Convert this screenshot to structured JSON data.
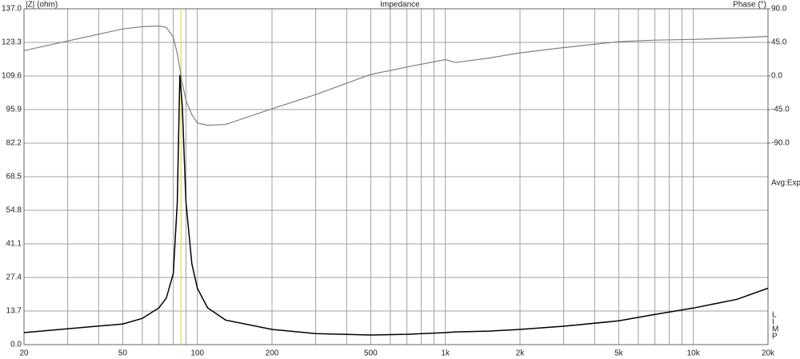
{
  "chart_data": {
    "type": "line",
    "title": "Impedance",
    "ylabel": "|Z| (ohm)",
    "y2label": "Phase (°)",
    "side_label": "Avg:Exp",
    "mode_letters": [
      "L",
      "I",
      "M",
      "P"
    ],
    "xscale": "log",
    "grid": true,
    "cursor_x": 86,
    "cursor_color": "#e8e060",
    "x": [
      20,
      50,
      60,
      70,
      75,
      80,
      83,
      85,
      87,
      90,
      95,
      100,
      110,
      130,
      200,
      300,
      500,
      700,
      1000,
      1100,
      1500,
      2000,
      3000,
      5000,
      7000,
      10000,
      15000,
      20000
    ],
    "series": [
      {
        "name": "Impedance",
        "color": "#000000",
        "values": [
          4.9,
          8.4,
          10.7,
          15,
          19,
          29,
          58,
          110,
          97,
          58,
          33,
          23,
          15,
          10,
          6.2,
          4.5,
          3.9,
          4.2,
          4.9,
          5.2,
          5.5,
          6.2,
          7.5,
          9.7,
          12.3,
          14.9,
          18.5,
          23
        ]
      },
      {
        "name": "Phase",
        "color": "#808080",
        "axis": "y2",
        "values": [
          34,
          63,
          66,
          67,
          65,
          52,
          30,
          10,
          -10,
          -33,
          -52,
          -63,
          -66,
          -65,
          -44,
          -25,
          2,
          12,
          22,
          18,
          24,
          31,
          38,
          46,
          48,
          49,
          51,
          53
        ]
      }
    ],
    "xlim": [
      20,
      20000
    ],
    "xticks": [
      20,
      50,
      100,
      200,
      500,
      {
        "value": 1000,
        "label": "1k"
      },
      {
        "value": 2000,
        "label": "2k"
      },
      {
        "value": 5000,
        "label": "5k"
      },
      {
        "value": 10000,
        "label": "10k"
      },
      {
        "value": 20000,
        "label": "20k"
      }
    ],
    "xminorticks": [
      30,
      40,
      60,
      70,
      80,
      90,
      300,
      400,
      600,
      700,
      800,
      900,
      3000,
      4000,
      6000,
      7000,
      8000,
      9000
    ],
    "ylim": [
      0,
      137
    ],
    "yticks": [
      {
        "value": 0,
        "label": "0.0"
      },
      13.7,
      27.4,
      41.1,
      54.8,
      68.5,
      82.2,
      95.9,
      109.6,
      123.3,
      {
        "value": 137,
        "label": "137.0"
      }
    ],
    "y2lim": [
      -360,
      90
    ],
    "y2ticks": [
      {
        "value": -90,
        "label": "-90.0"
      },
      {
        "value": -45,
        "label": "-45.0"
      },
      {
        "value": 0,
        "label": "0.0"
      },
      {
        "value": 45,
        "label": "45.0"
      },
      {
        "value": 90,
        "label": "90.0"
      }
    ]
  }
}
